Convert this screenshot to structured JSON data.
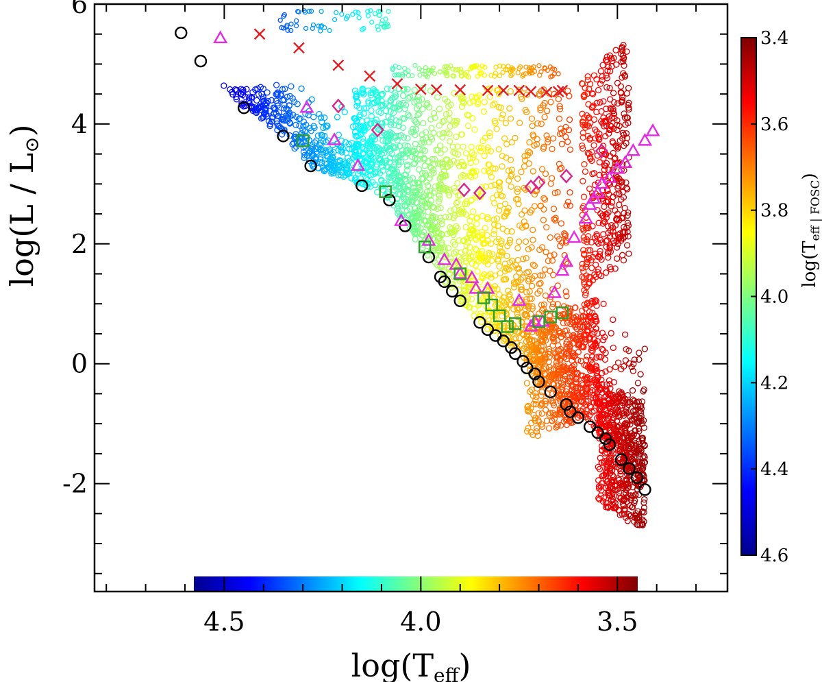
{
  "chart_data": {
    "type": "scatter",
    "title": "",
    "xlabel": "log(T",
    "xlabel_sub": "eff",
    "xlabel_close": ")",
    "ylabel": "log(L / L",
    "ylabel_sym": "⊙",
    "ylabel_close": ")",
    "xlim": [
      4.83,
      3.22
    ],
    "ylim": [
      -3.8,
      6.0
    ],
    "x_ticks": [
      4.5,
      4.0,
      3.5
    ],
    "x_tick_labels": [
      "4.5",
      "4.0",
      "3.5"
    ],
    "y_ticks": [
      -2,
      0,
      2,
      4,
      6
    ],
    "y_tick_labels": [
      "-2",
      "0",
      "2",
      "4",
      "6"
    ],
    "colorbar": {
      "title": "log(T",
      "title_sub": "eff | FOSC",
      "title_close": ")",
      "range": [
        3.4,
        4.6
      ],
      "ticks": [
        3.4,
        3.6,
        3.8,
        4.0,
        4.2,
        4.4,
        4.6
      ],
      "tick_labels": [
        "3.4",
        "3.6",
        "3.8",
        "4.0",
        "4.2",
        "4.4",
        "4.6"
      ],
      "colors": [
        "#00008f",
        "#0000ff",
        "#0080ff",
        "#00ffff",
        "#80ff80",
        "#ffff00",
        "#ff8000",
        "#ff0000",
        "#800000"
      ]
    },
    "series": [
      {
        "name": "ZAMS (black circles)",
        "marker": "circle",
        "color": "#000000",
        "points": [
          [
            4.61,
            5.52
          ],
          [
            4.56,
            5.05
          ],
          [
            4.45,
            4.27
          ],
          [
            4.35,
            3.8
          ],
          [
            4.28,
            3.3
          ],
          [
            4.15,
            2.97
          ],
          [
            4.08,
            2.73
          ],
          [
            4.04,
            2.3
          ],
          [
            3.98,
            1.78
          ],
          [
            3.95,
            1.45
          ],
          [
            3.94,
            1.37
          ],
          [
            3.92,
            1.21
          ],
          [
            3.9,
            1.05
          ],
          [
            3.85,
            0.69
          ],
          [
            3.83,
            0.57
          ],
          [
            3.81,
            0.47
          ],
          [
            3.79,
            0.38
          ],
          [
            3.77,
            0.27
          ],
          [
            3.76,
            0.17
          ],
          [
            3.74,
            0.04
          ],
          [
            3.73,
            -0.07
          ],
          [
            3.71,
            -0.17
          ],
          [
            3.7,
            -0.3
          ],
          [
            3.67,
            -0.47
          ],
          [
            3.63,
            -0.68
          ],
          [
            3.62,
            -0.8
          ],
          [
            3.6,
            -0.9
          ],
          [
            3.57,
            -1.05
          ],
          [
            3.55,
            -1.15
          ],
          [
            3.53,
            -1.25
          ],
          [
            3.52,
            -1.35
          ],
          [
            3.49,
            -1.6
          ],
          [
            3.47,
            -1.75
          ],
          [
            3.45,
            -1.9
          ],
          [
            3.43,
            -2.1
          ]
        ]
      },
      {
        "name": "red crosses",
        "marker": "x",
        "color": "#e41a1c",
        "points": [
          [
            4.41,
            5.5
          ],
          [
            4.31,
            5.27
          ],
          [
            4.21,
            4.98
          ],
          [
            4.13,
            4.8
          ],
          [
            4.06,
            4.67
          ],
          [
            4.0,
            4.58
          ],
          [
            3.96,
            4.57
          ],
          [
            3.9,
            4.57
          ],
          [
            3.83,
            4.56
          ],
          [
            3.79,
            4.56
          ],
          [
            3.75,
            4.56
          ],
          [
            3.72,
            4.54
          ],
          [
            3.68,
            4.53
          ],
          [
            3.65,
            4.54
          ],
          [
            3.64,
            4.56
          ]
        ]
      },
      {
        "name": "magenta triangles",
        "marker": "triangle",
        "color": "#e22be2",
        "points": [
          [
            4.51,
            5.43
          ],
          [
            4.29,
            4.27
          ],
          [
            4.22,
            3.73
          ],
          [
            4.16,
            3.3
          ],
          [
            4.05,
            2.38
          ],
          [
            3.98,
            2.05
          ],
          [
            3.94,
            1.73
          ],
          [
            3.91,
            1.65
          ],
          [
            3.9,
            1.5
          ],
          [
            3.87,
            1.43
          ],
          [
            3.86,
            1.25
          ],
          [
            3.83,
            1.25
          ],
          [
            3.75,
            1.05
          ],
          [
            3.72,
            0.62
          ],
          [
            3.71,
            0.7
          ],
          [
            3.69,
            0.7
          ],
          [
            3.66,
            1.18
          ],
          [
            3.64,
            1.55
          ],
          [
            3.63,
            1.7
          ],
          [
            3.61,
            2.1
          ],
          [
            3.58,
            2.42
          ],
          [
            3.57,
            2.65
          ],
          [
            3.56,
            2.75
          ],
          [
            3.55,
            2.85
          ],
          [
            3.54,
            3.0
          ],
          [
            3.52,
            3.1
          ],
          [
            3.5,
            3.25
          ],
          [
            3.48,
            3.35
          ],
          [
            3.46,
            3.55
          ],
          [
            3.43,
            3.72
          ],
          [
            3.41,
            3.88
          ]
        ]
      },
      {
        "name": "magenta diamonds",
        "marker": "diamond",
        "color": "#d9268c",
        "points": [
          [
            4.21,
            4.3
          ],
          [
            4.11,
            3.9
          ],
          [
            3.89,
            2.9
          ],
          [
            3.85,
            2.85
          ],
          [
            3.72,
            2.95
          ],
          [
            3.7,
            3.02
          ],
          [
            3.63,
            3.13
          ],
          [
            3.54,
            3.55
          ]
        ]
      },
      {
        "name": "green squares",
        "marker": "square",
        "color": "#2ca02c",
        "points": [
          [
            4.3,
            3.72
          ],
          [
            4.09,
            2.87
          ],
          [
            3.99,
            1.95
          ],
          [
            3.9,
            1.5
          ],
          [
            3.84,
            1.1
          ],
          [
            3.82,
            0.98
          ],
          [
            3.8,
            0.8
          ],
          [
            3.78,
            0.62
          ],
          [
            3.76,
            0.67
          ],
          [
            3.7,
            0.7
          ],
          [
            3.67,
            0.78
          ],
          [
            3.64,
            0.85
          ]
        ]
      }
    ]
  }
}
